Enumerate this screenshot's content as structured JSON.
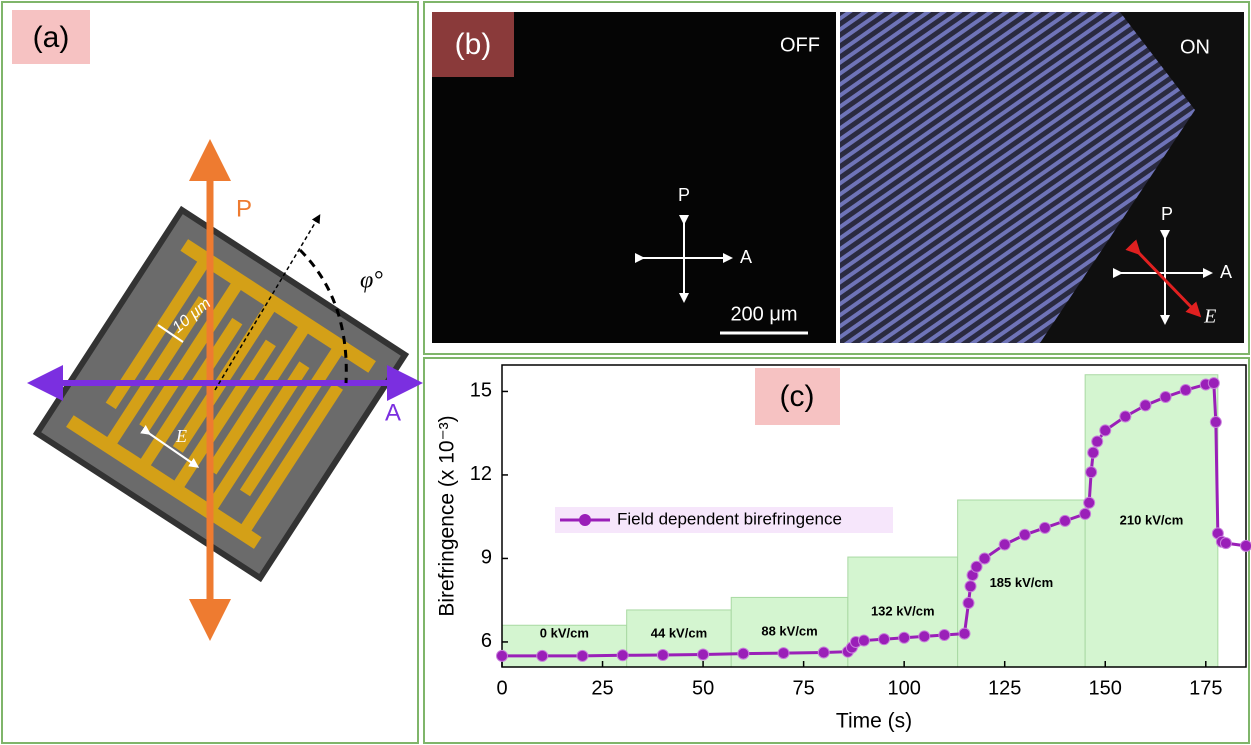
{
  "panel_a": {
    "label": "(a)",
    "polarizer": "P",
    "analyzer": "A",
    "angle": "φ°",
    "gap": "10 μm",
    "field": "E"
  },
  "panel_b": {
    "label": "(b)",
    "off": "OFF",
    "on": "ON",
    "polarizer_off": "P",
    "analyzer_off": "A",
    "scale": "200 μm",
    "polarizer_on": "P",
    "analyzer_on": "A",
    "field_on": "E⃗"
  },
  "chart_data": {
    "type": "line",
    "label": "(c)",
    "x_label": "Time (s)",
    "y_label": "Birefringence (x 10⁻³)",
    "xlim": [
      0,
      185
    ],
    "ylim": [
      5.1,
      15.95
    ],
    "xticks": [
      0,
      25,
      50,
      75,
      100,
      125,
      150,
      175
    ],
    "yticks": [
      6,
      9,
      12,
      15
    ],
    "legend": "upper left",
    "regions": [
      {
        "label": "0 kV/cm",
        "x0": 0,
        "x1": 31,
        "top": 6.6
      },
      {
        "label": "44 kV/cm",
        "x0": 31,
        "x1": 57,
        "top": 7.15
      },
      {
        "label": "88 kV/cm",
        "x0": 57,
        "x1": 86,
        "top": 7.6
      },
      {
        "label": "132 kV/cm",
        "x0": 86,
        "x1": 113.3,
        "top": 9.05
      },
      {
        "label": "185 kV/cm",
        "x0": 113.3,
        "x1": 145,
        "top": 11.1
      },
      {
        "label": "210 kV/cm",
        "x0": 145,
        "x1": 178,
        "top": 15.6
      }
    ],
    "series": [
      {
        "name": "Field dependent birefringence",
        "color": "#9a1fb8",
        "x": [
          0,
          10,
          20,
          30,
          40,
          50,
          60,
          70,
          80,
          86,
          87,
          88,
          90,
          95,
          100,
          105,
          110,
          115,
          116,
          116.5,
          117,
          118,
          120,
          125,
          130,
          135,
          140,
          145,
          146,
          146.5,
          147,
          148,
          150,
          155,
          160,
          165,
          170,
          175,
          177,
          177.5,
          178,
          179,
          180,
          185
        ],
        "values": [
          5.5,
          5.5,
          5.5,
          5.52,
          5.53,
          5.55,
          5.58,
          5.6,
          5.62,
          5.65,
          5.8,
          6.0,
          6.05,
          6.1,
          6.15,
          6.2,
          6.25,
          6.3,
          7.4,
          8.0,
          8.4,
          8.7,
          9.0,
          9.5,
          9.85,
          10.1,
          10.35,
          10.6,
          11.0,
          12.1,
          12.8,
          13.2,
          13.6,
          14.1,
          14.5,
          14.8,
          15.05,
          15.25,
          15.3,
          13.9,
          9.9,
          9.6,
          9.55,
          9.45
        ]
      }
    ]
  }
}
